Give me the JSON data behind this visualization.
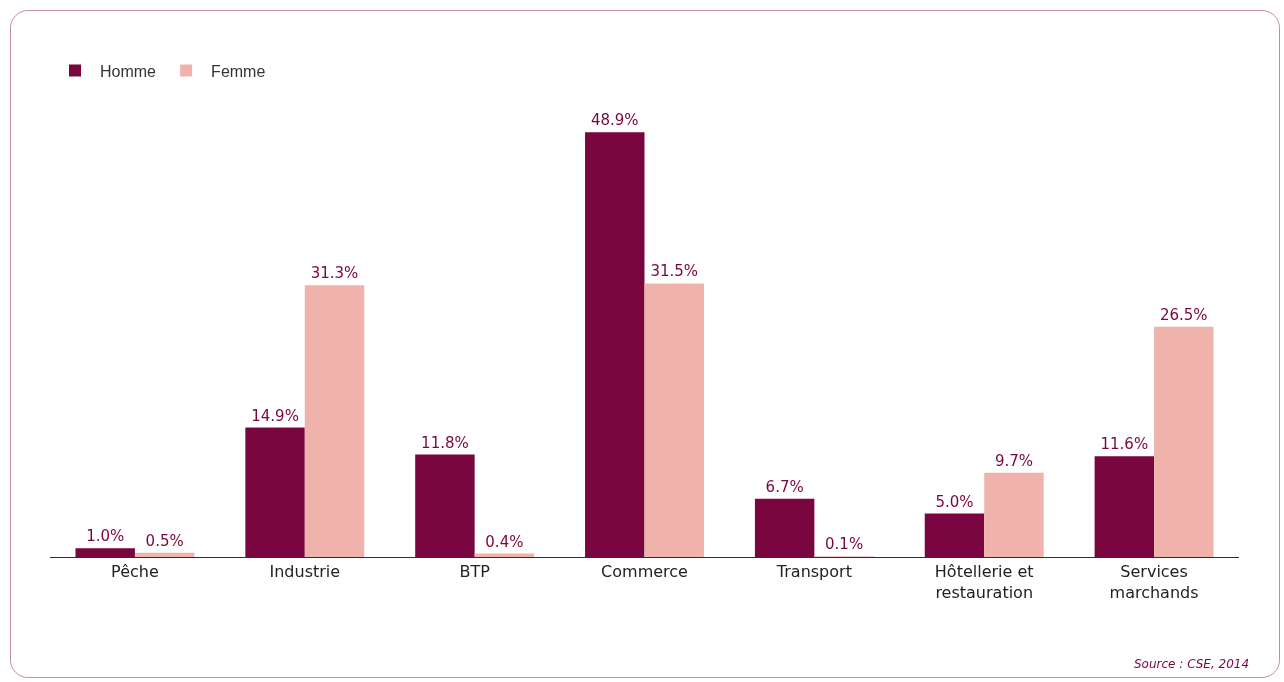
{
  "chart_data": {
    "type": "bar",
    "categories": [
      "Pêche",
      "Industrie",
      "BTP",
      "Commerce",
      "Transport",
      "Hôtellerie et\nrestauration",
      "Services\nmarchands"
    ],
    "series": [
      {
        "name": "Homme",
        "color": "#7a0640",
        "values": [
          1.0,
          14.9,
          11.8,
          48.9,
          6.7,
          5.0,
          11.6
        ],
        "value_labels": [
          "1.0%",
          "14.9%",
          "11.8%",
          "48.9%",
          "6.7%",
          "5.0%",
          "11.6%"
        ]
      },
      {
        "name": "Femme",
        "color": "#efb3ac",
        "values": [
          0.5,
          31.3,
          0.4,
          31.5,
          0.1,
          9.7,
          26.5
        ],
        "value_labels": [
          "0.5%",
          "31.3%",
          "0.4%",
          "31.5%",
          "0.1%",
          "9.7%",
          "26.5%"
        ]
      }
    ],
    "legend": "top left",
    "grid": false,
    "tick_labels": "x",
    "annotations": [
      "Source : CSE, 2014"
    ]
  }
}
